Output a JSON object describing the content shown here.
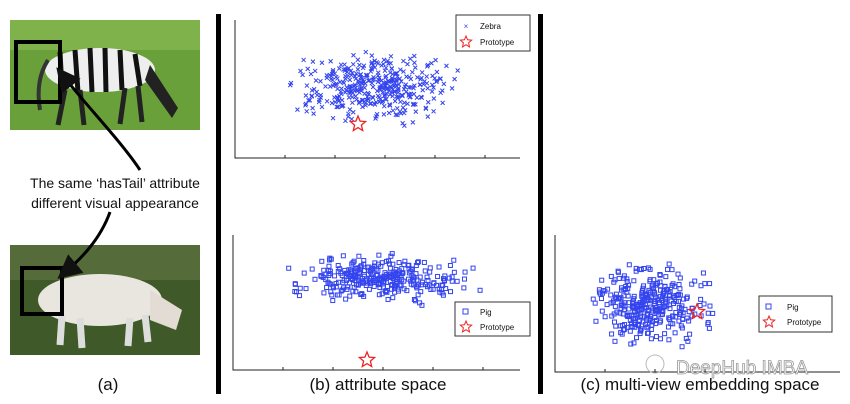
{
  "panel_a": {
    "annotation_line1": "The same ‘hasTail’ attribute",
    "annotation_line2": "different visual appearance",
    "caption": "(a)"
  },
  "panel_b": {
    "caption": "(b) attribute space",
    "top_legend": [
      "Zebra",
      "Prototype"
    ],
    "bottom_legend": [
      "Pig",
      "Prototype"
    ]
  },
  "panel_c": {
    "caption": "(c) multi-view embedding space",
    "legend": [
      "Pig",
      "Prototype"
    ]
  },
  "watermark": "DeepHub IMBA",
  "colors": {
    "points": "#3344ee",
    "prototype": "#ee2222"
  },
  "chart_data": [
    {
      "type": "scatter",
      "title": "attribute space (Zebra)",
      "series": [
        {
          "name": "Zebra",
          "marker": "x",
          "shape": "broad cloud"
        },
        {
          "name": "Prototype",
          "marker": "star",
          "position": "center of cloud"
        }
      ],
      "legend": "top-right"
    },
    {
      "type": "scatter",
      "title": "attribute space (Pig)",
      "series": [
        {
          "name": "Pig",
          "marker": "square",
          "shape": "horizontal band"
        },
        {
          "name": "Prototype",
          "marker": "star",
          "position": "far below band"
        }
      ],
      "legend": "right"
    },
    {
      "type": "scatter",
      "title": "multi-view embedding space (Pig)",
      "series": [
        {
          "name": "Pig",
          "marker": "square",
          "shape": "cloud"
        },
        {
          "name": "Prototype",
          "marker": "star",
          "position": "inside cloud"
        }
      ],
      "legend": "right"
    }
  ]
}
